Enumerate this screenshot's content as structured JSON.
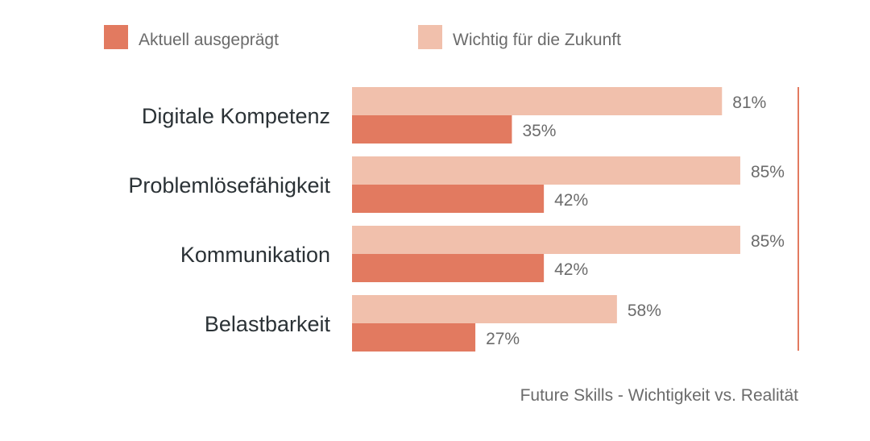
{
  "chart_data": {
    "type": "bar",
    "orientation": "horizontal",
    "title": "Future Skills - Wichtigkeit vs. Realität",
    "categories": [
      "Digitale Kompetenz",
      "Problemlösefähigkeit",
      "Kommunikation",
      "Belastbarkeit"
    ],
    "series": [
      {
        "name": "Wichtig für die Zukunft",
        "values": [
          81,
          85,
          85,
          58
        ],
        "color": "#F1C0AC"
      },
      {
        "name": "Aktuell ausgeprägt",
        "values": [
          35,
          42,
          42,
          27
        ],
        "color": "#E27A60"
      }
    ],
    "legend_order": [
      "Aktuell ausgeprägt",
      "Wichtig für die Zukunft"
    ],
    "value_suffix": "%",
    "xlim": [
      0,
      100
    ],
    "legend_position": "top",
    "grid": false,
    "reference_line_color": "#E27A60"
  }
}
